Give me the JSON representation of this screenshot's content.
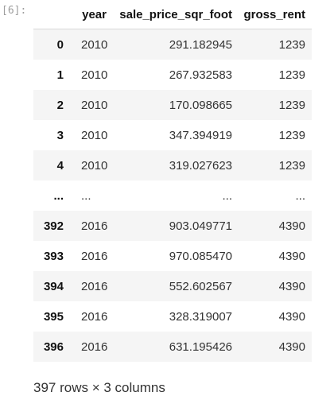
{
  "cell": {
    "prompt": "[6]:"
  },
  "dataframe": {
    "columns": {
      "index": "",
      "year": "year",
      "price": "sale_price_sqr_foot",
      "rent": "gross_rent"
    },
    "rows": [
      {
        "index": "0",
        "year": "2010",
        "price": "291.182945",
        "rent": "1239"
      },
      {
        "index": "1",
        "year": "2010",
        "price": "267.932583",
        "rent": "1239"
      },
      {
        "index": "2",
        "year": "2010",
        "price": "170.098665",
        "rent": "1239"
      },
      {
        "index": "3",
        "year": "2010",
        "price": "347.394919",
        "rent": "1239"
      },
      {
        "index": "4",
        "year": "2010",
        "price": "319.027623",
        "rent": "1239"
      },
      {
        "index": "...",
        "year": "...",
        "price": "...",
        "rent": "..."
      },
      {
        "index": "392",
        "year": "2016",
        "price": "903.049771",
        "rent": "4390"
      },
      {
        "index": "393",
        "year": "2016",
        "price": "970.085470",
        "rent": "4390"
      },
      {
        "index": "394",
        "year": "2016",
        "price": "552.602567",
        "rent": "4390"
      },
      {
        "index": "395",
        "year": "2016",
        "price": "328.319007",
        "rent": "4390"
      },
      {
        "index": "396",
        "year": "2016",
        "price": "631.195426",
        "rent": "4390"
      }
    ],
    "shape_text": "397 rows × 3 columns"
  }
}
